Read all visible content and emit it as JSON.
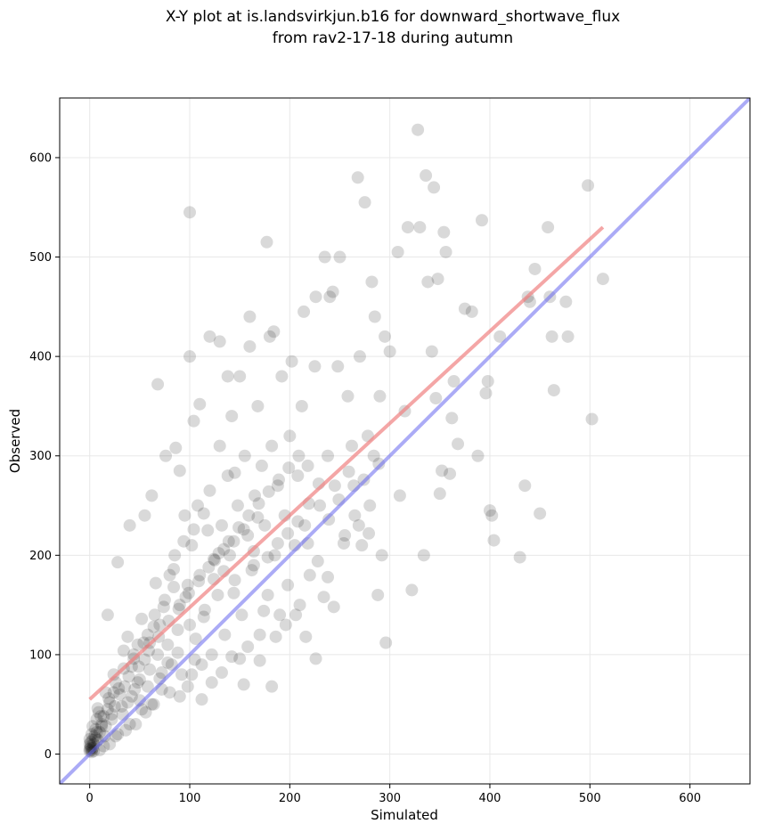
{
  "chart_data": {
    "type": "scatter",
    "title": [
      "X-Y plot at is.landsvirkjun.b16 for downward_shortwave_flux",
      "from rav2-17-18 during autumn"
    ],
    "xlabel": "Simulated",
    "ylabel": "Observed",
    "xlim": [
      -30,
      660
    ],
    "ylim": [
      -30,
      660
    ],
    "xticks": [
      0,
      100,
      200,
      300,
      400,
      500,
      600
    ],
    "yticks": [
      0,
      100,
      200,
      300,
      400,
      500,
      600
    ],
    "grid": true,
    "colors": {
      "points": "#000000",
      "regression": "#f08080",
      "identity": "#6666ee"
    },
    "regression_line": {
      "x": [
        0,
        513
      ],
      "y": [
        55,
        530
      ]
    },
    "identity_line": {
      "x": [
        -30,
        660
      ],
      "y": [
        -30,
        660
      ]
    },
    "points": [
      [
        0,
        3
      ],
      [
        0,
        5
      ],
      [
        1,
        8
      ],
      [
        2,
        4
      ],
      [
        1,
        12
      ],
      [
        3,
        6
      ],
      [
        0,
        15
      ],
      [
        2,
        20
      ],
      [
        4,
        10
      ],
      [
        5,
        18
      ],
      [
        6,
        25
      ],
      [
        3,
        28
      ],
      [
        8,
        14
      ],
      [
        10,
        22
      ],
      [
        7,
        35
      ],
      [
        12,
        30
      ],
      [
        9,
        42
      ],
      [
        15,
        18
      ],
      [
        14,
        38
      ],
      [
        18,
        45
      ],
      [
        16,
        28
      ],
      [
        20,
        52
      ],
      [
        22,
        35
      ],
      [
        25,
        48
      ],
      [
        28,
        20
      ],
      [
        30,
        60
      ],
      [
        26,
        72
      ],
      [
        33,
        40
      ],
      [
        35,
        68
      ],
      [
        38,
        52
      ],
      [
        40,
        30
      ],
      [
        42,
        88
      ],
      [
        45,
        65
      ],
      [
        48,
        110
      ],
      [
        50,
        75
      ],
      [
        52,
        45
      ],
      [
        55,
        95
      ],
      [
        58,
        120
      ],
      [
        60,
        85
      ],
      [
        62,
        50
      ],
      [
        65,
        140
      ],
      [
        68,
        100
      ],
      [
        70,
        130
      ],
      [
        72,
        65
      ],
      [
        75,
        155
      ],
      [
        78,
        110
      ],
      [
        80,
        180
      ],
      [
        82,
        90
      ],
      [
        85,
        200
      ],
      [
        88,
        125
      ],
      [
        90,
        150
      ],
      [
        92,
        80
      ],
      [
        95,
        240
      ],
      [
        98,
        170
      ],
      [
        100,
        130
      ],
      [
        102,
        210
      ],
      [
        105,
        95
      ],
      [
        108,
        250
      ],
      [
        110,
        180
      ],
      [
        112,
        55
      ],
      [
        115,
        145
      ],
      [
        118,
        225
      ],
      [
        120,
        265
      ],
      [
        122,
        100
      ],
      [
        125,
        195
      ],
      [
        128,
        160
      ],
      [
        130,
        310
      ],
      [
        132,
        230
      ],
      [
        135,
        120
      ],
      [
        138,
        280
      ],
      [
        140,
        200
      ],
      [
        142,
        340
      ],
      [
        145,
        175
      ],
      [
        148,
        250
      ],
      [
        150,
        380
      ],
      [
        152,
        140
      ],
      [
        155,
        300
      ],
      [
        158,
        220
      ],
      [
        160,
        410
      ],
      [
        162,
        185
      ],
      [
        165,
        260
      ],
      [
        168,
        350
      ],
      [
        170,
        120
      ],
      [
        172,
        290
      ],
      [
        175,
        230
      ],
      [
        178,
        160
      ],
      [
        180,
        420
      ],
      [
        182,
        310
      ],
      [
        185,
        200
      ],
      [
        188,
        270
      ],
      [
        190,
        140
      ],
      [
        192,
        380
      ],
      [
        195,
        240
      ],
      [
        198,
        170
      ],
      [
        200,
        320
      ],
      [
        202,
        395
      ],
      [
        205,
        210
      ],
      [
        208,
        280
      ],
      [
        210,
        150
      ],
      [
        212,
        350
      ],
      [
        215,
        230
      ],
      [
        218,
        290
      ],
      [
        220,
        180
      ],
      [
        225,
        390
      ],
      [
        230,
        250
      ],
      [
        235,
        500
      ],
      [
        238,
        300
      ],
      [
        240,
        460
      ],
      [
        245,
        270
      ],
      [
        248,
        390
      ],
      [
        250,
        500
      ],
      [
        255,
        220
      ],
      [
        258,
        360
      ],
      [
        262,
        310
      ],
      [
        265,
        240
      ],
      [
        268,
        580
      ],
      [
        270,
        400
      ],
      [
        272,
        210
      ],
      [
        275,
        555
      ],
      [
        278,
        320
      ],
      [
        280,
        250
      ],
      [
        282,
        475
      ],
      [
        285,
        440
      ],
      [
        288,
        160
      ],
      [
        290,
        360
      ],
      [
        292,
        200
      ],
      [
        295,
        420
      ],
      [
        300,
        405
      ],
      [
        308,
        505
      ],
      [
        310,
        260
      ],
      [
        315,
        345
      ],
      [
        318,
        530
      ],
      [
        322,
        165
      ],
      [
        328,
        628
      ],
      [
        330,
        530
      ],
      [
        334,
        200
      ],
      [
        336,
        582
      ],
      [
        338,
        475
      ],
      [
        342,
        405
      ],
      [
        344,
        570
      ],
      [
        346,
        358
      ],
      [
        348,
        478
      ],
      [
        350,
        262
      ],
      [
        352,
        285
      ],
      [
        354,
        525
      ],
      [
        356,
        505
      ],
      [
        360,
        282
      ],
      [
        362,
        338
      ],
      [
        364,
        375
      ],
      [
        368,
        312
      ],
      [
        375,
        448
      ],
      [
        382,
        445
      ],
      [
        388,
        300
      ],
      [
        392,
        537
      ],
      [
        396,
        363
      ],
      [
        398,
        375
      ],
      [
        400,
        245
      ],
      [
        402,
        240
      ],
      [
        404,
        215
      ],
      [
        410,
        420
      ],
      [
        430,
        198
      ],
      [
        435,
        270
      ],
      [
        438,
        460
      ],
      [
        440,
        455
      ],
      [
        445,
        488
      ],
      [
        450,
        242
      ],
      [
        458,
        530
      ],
      [
        460,
        460
      ],
      [
        462,
        420
      ],
      [
        464,
        366
      ],
      [
        476,
        455
      ],
      [
        478,
        420
      ],
      [
        498,
        572
      ],
      [
        502,
        337
      ],
      [
        513,
        478
      ],
      [
        100,
        545
      ],
      [
        177,
        515
      ],
      [
        68,
        372
      ],
      [
        100,
        400
      ],
      [
        160,
        440
      ],
      [
        184,
        425
      ],
      [
        214,
        445
      ],
      [
        226,
        460
      ],
      [
        120,
        420
      ],
      [
        130,
        415
      ],
      [
        243,
        465
      ],
      [
        138,
        380
      ],
      [
        110,
        352
      ],
      [
        145,
        283
      ],
      [
        104,
        335
      ],
      [
        86,
        308
      ],
      [
        76,
        300
      ],
      [
        90,
        285
      ],
      [
        62,
        260
      ],
      [
        55,
        240
      ],
      [
        40,
        230
      ],
      [
        28,
        193
      ],
      [
        18,
        140
      ],
      [
        38,
        118
      ],
      [
        44,
        96
      ],
      [
        48,
        72
      ],
      [
        12,
        28
      ],
      [
        6,
        16
      ],
      [
        0,
        10
      ],
      [
        2,
        2
      ],
      [
        8,
        46
      ],
      [
        16,
        62
      ],
      [
        24,
        80
      ],
      [
        34,
        104
      ],
      [
        52,
        136
      ],
      [
        60,
        112
      ],
      [
        66,
        172
      ],
      [
        72,
        82
      ],
      [
        84,
        186
      ],
      [
        96,
        158
      ],
      [
        106,
        116
      ],
      [
        114,
        138
      ],
      [
        124,
        176
      ],
      [
        134,
        206
      ],
      [
        144,
        162
      ],
      [
        150,
        96
      ],
      [
        158,
        108
      ],
      [
        164,
        190
      ],
      [
        174,
        144
      ],
      [
        186,
        118
      ],
      [
        196,
        130
      ],
      [
        206,
        140
      ],
      [
        216,
        118
      ],
      [
        226,
        96
      ],
      [
        234,
        158
      ],
      [
        244,
        148
      ],
      [
        254,
        212
      ],
      [
        264,
        270
      ],
      [
        274,
        276
      ],
      [
        284,
        300
      ],
      [
        296,
        112
      ],
      [
        102,
        80
      ],
      [
        112,
        90
      ],
      [
        122,
        72
      ],
      [
        132,
        82
      ],
      [
        142,
        98
      ],
      [
        154,
        70
      ],
      [
        170,
        94
      ],
      [
        182,
        68
      ],
      [
        98,
        68
      ],
      [
        88,
        102
      ],
      [
        78,
        92
      ],
      [
        64,
        50
      ],
      [
        56,
        42
      ],
      [
        46,
        30
      ],
      [
        36,
        24
      ],
      [
        26,
        18
      ],
      [
        20,
        10
      ],
      [
        14,
        8
      ],
      [
        10,
        4
      ],
      [
        4,
        3
      ],
      [
        1,
        6
      ],
      [
        3,
        14
      ],
      [
        7,
        22
      ],
      [
        11,
        38
      ],
      [
        19,
        56
      ],
      [
        29,
        66
      ],
      [
        39,
        78
      ],
      [
        49,
        88
      ],
      [
        59,
        104
      ],
      [
        69,
        118
      ],
      [
        79,
        134
      ],
      [
        89,
        146
      ],
      [
        99,
        162
      ],
      [
        109,
        174
      ],
      [
        119,
        188
      ],
      [
        129,
        202
      ],
      [
        139,
        214
      ],
      [
        149,
        228
      ],
      [
        159,
        240
      ],
      [
        169,
        252
      ],
      [
        179,
        264
      ],
      [
        189,
        276
      ],
      [
        199,
        288
      ],
      [
        209,
        300
      ],
      [
        219,
        252
      ],
      [
        229,
        272
      ],
      [
        239,
        236
      ],
      [
        249,
        256
      ],
      [
        259,
        284
      ],
      [
        269,
        230
      ],
      [
        279,
        222
      ],
      [
        289,
        292
      ],
      [
        168,
        238
      ],
      [
        178,
        198
      ],
      [
        188,
        212
      ],
      [
        198,
        222
      ],
      [
        208,
        234
      ],
      [
        218,
        212
      ],
      [
        228,
        194
      ],
      [
        238,
        178
      ],
      [
        94,
        214
      ],
      [
        104,
        226
      ],
      [
        114,
        242
      ],
      [
        124,
        196
      ],
      [
        134,
        184
      ],
      [
        144,
        214
      ],
      [
        154,
        226
      ],
      [
        164,
        204
      ],
      [
        84,
        168
      ],
      [
        74,
        148
      ],
      [
        64,
        128
      ],
      [
        54,
        112
      ],
      [
        44,
        100
      ],
      [
        34,
        86
      ],
      [
        24,
        62
      ],
      [
        42,
        58
      ],
      [
        32,
        48
      ],
      [
        22,
        40
      ],
      [
        50,
        54
      ],
      [
        58,
        68
      ],
      [
        70,
        76
      ],
      [
        80,
        62
      ],
      [
        90,
        58
      ]
    ]
  }
}
